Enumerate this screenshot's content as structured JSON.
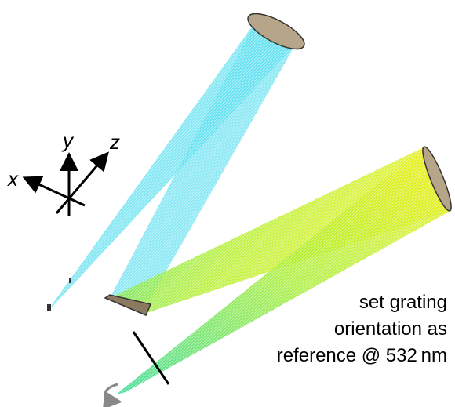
{
  "axes": {
    "x": "x",
    "y": "y",
    "z": "z"
  },
  "annotation": {
    "lines": [
      "set grating",
      "orientation as",
      "reference @ 532 nm"
    ]
  }
}
